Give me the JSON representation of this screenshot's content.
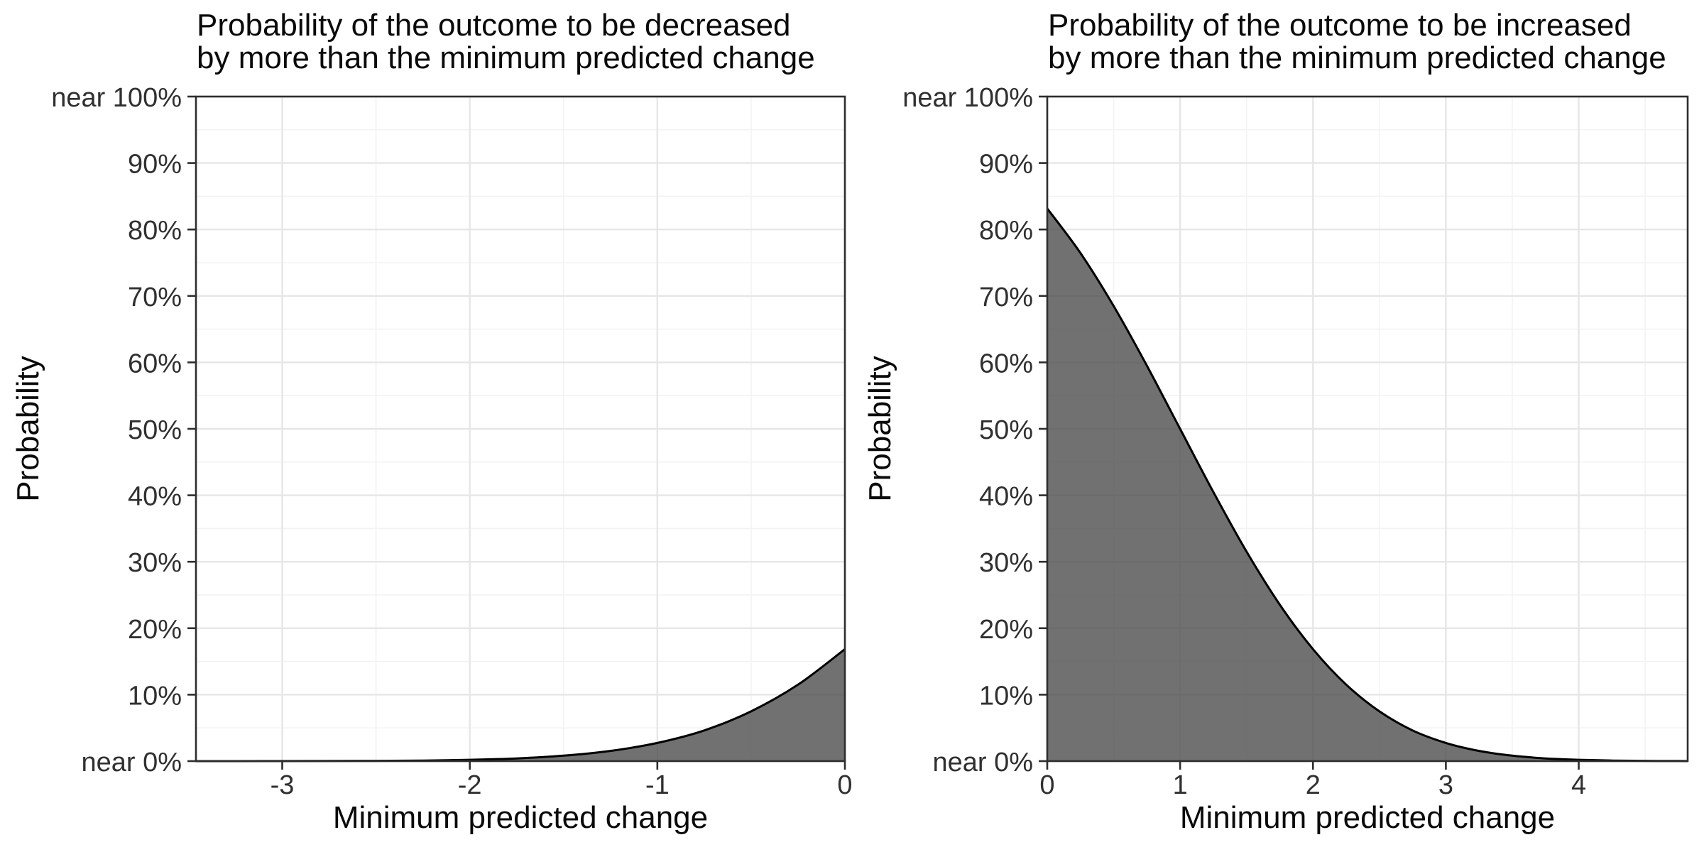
{
  "style": {
    "page_background": "#ffffff",
    "panel_background": "#ffffff",
    "area_fill": "rgba(77,77,77,0.8)",
    "curve_stroke": "#000000",
    "panel_border": "#2e2e2e",
    "grid_major": "#e6e6e6",
    "grid_minor": "#f3f3f3",
    "tick_mark": "#2e2e2e",
    "title_text": "#0a0a0a",
    "tick_text": "#303030"
  },
  "chart_data": [
    {
      "type": "area",
      "title_lines": [
        "Probability of the outcome to be decreased",
        "by more than the minimum predicted change"
      ],
      "xlabel": "Minimum predicted change",
      "ylabel": "Probability",
      "xlim": [
        -3.46,
        0
      ],
      "ylim": [
        0,
        100
      ],
      "grid": true,
      "legend": "none",
      "x_ticks": {
        "values": [
          -3,
          -2,
          -1,
          0
        ],
        "labels": [
          "-3",
          "-2",
          "-1",
          "0"
        ]
      },
      "y_ticks": {
        "values": [
          0,
          10,
          20,
          30,
          40,
          50,
          60,
          70,
          80,
          90,
          100
        ],
        "labels": [
          "near 0%",
          "10%",
          "20%",
          "30%",
          "40%",
          "50%",
          "60%",
          "70%",
          "80%",
          "90%",
          "near 100%"
        ]
      },
      "x_minor_step": 0.5,
      "y_minor_step": 5,
      "series": [
        {
          "name": "P(outcome decreased by more than x)",
          "x": [
            -3.46,
            -3.25,
            -3,
            -2.75,
            -2.5,
            -2.25,
            -2,
            -1.75,
            -1.5,
            -1.25,
            -1,
            -0.75,
            -0.5,
            -0.25,
            0
          ],
          "y_percent": [
            0.0,
            0.0,
            0.01,
            0.02,
            0.04,
            0.09,
            0.2,
            0.41,
            0.82,
            1.54,
            2.74,
            4.62,
            7.49,
            11.51,
            16.85
          ]
        }
      ]
    },
    {
      "type": "area",
      "title_lines": [
        "Probability of the outcome to be increased",
        "by more than the minimum predicted change"
      ],
      "xlabel": "Minimum predicted change",
      "ylabel": "Probability",
      "xlim": [
        0,
        4.82
      ],
      "ylim": [
        0,
        100
      ],
      "grid": true,
      "legend": "none",
      "x_ticks": {
        "values": [
          0,
          1,
          2,
          3,
          4
        ],
        "labels": [
          "0",
          "1",
          "2",
          "3",
          "4"
        ]
      },
      "y_ticks": {
        "values": [
          0,
          10,
          20,
          30,
          40,
          50,
          60,
          70,
          80,
          90,
          100
        ],
        "labels": [
          "near 0%",
          "10%",
          "20%",
          "30%",
          "40%",
          "50%",
          "60%",
          "70%",
          "80%",
          "90%",
          "near 100%"
        ]
      },
      "x_minor_step": 0.5,
      "y_minor_step": 5,
      "series": [
        {
          "name": "P(outcome increased by more than x)",
          "x": [
            0,
            0.25,
            0.5,
            0.75,
            1,
            1.25,
            1.5,
            1.75,
            2,
            2.25,
            2.5,
            2.75,
            3,
            3.25,
            3.5,
            3.75,
            4,
            4.25,
            4.5,
            4.75,
            4.82
          ],
          "y_percent": [
            83.15,
            76.45,
            68.47,
            59.5,
            50.0,
            40.5,
            31.53,
            23.55,
            16.85,
            11.51,
            7.49,
            4.62,
            2.74,
            1.54,
            0.82,
            0.41,
            0.2,
            0.09,
            0.04,
            0.02,
            0.01
          ]
        }
      ]
    }
  ]
}
